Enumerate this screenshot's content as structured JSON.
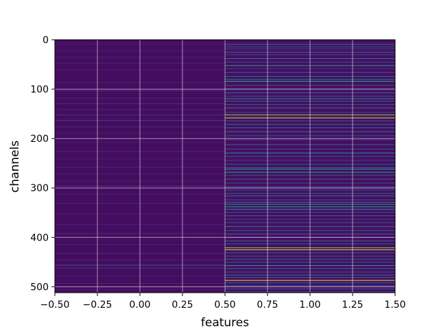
{
  "chart_data": {
    "type": "heatmap",
    "title": "",
    "xlabel": "features",
    "ylabel": "channels",
    "xlim": [
      -0.5,
      1.5
    ],
    "ylim": [
      512,
      0
    ],
    "y_inverted": true,
    "grid": true,
    "colormap": "viridis",
    "x_ticks": [
      -0.5,
      -0.25,
      0.0,
      0.25,
      0.5,
      0.75,
      1.0,
      1.25,
      1.5
    ],
    "x_tick_labels": [
      "−0.50",
      "−0.25",
      "0.00",
      "0.25",
      "0.50",
      "0.75",
      "1.00",
      "1.25",
      "1.50"
    ],
    "y_ticks": [
      0,
      100,
      200,
      300,
      400,
      500
    ],
    "y_tick_labels": [
      "0",
      "100",
      "200",
      "300",
      "400",
      "500"
    ],
    "columns": [
      {
        "feature": 0,
        "base_value": 0.04,
        "bright_rows": [
          {
            "channel": 8,
            "value": 0.1
          },
          {
            "channel": 22,
            "value": 0.12
          },
          {
            "channel": 35,
            "value": 0.12
          },
          {
            "channel": 47,
            "value": 0.14
          },
          {
            "channel": 61,
            "value": 0.1
          },
          {
            "channel": 86,
            "value": 0.12
          },
          {
            "channel": 103,
            "value": 0.16
          },
          {
            "channel": 118,
            "value": 0.14
          },
          {
            "channel": 129,
            "value": 0.16
          },
          {
            "channel": 141,
            "value": 0.12
          },
          {
            "channel": 152,
            "value": 0.18
          },
          {
            "channel": 163,
            "value": 0.26
          },
          {
            "channel": 176,
            "value": 0.14
          },
          {
            "channel": 189,
            "value": 0.12
          },
          {
            "channel": 207,
            "value": 0.1
          },
          {
            "channel": 226,
            "value": 0.14
          },
          {
            "channel": 241,
            "value": 0.12
          },
          {
            "channel": 258,
            "value": 0.14
          },
          {
            "channel": 271,
            "value": 0.1
          },
          {
            "channel": 286,
            "value": 0.12
          },
          {
            "channel": 296,
            "value": 0.22
          },
          {
            "channel": 312,
            "value": 0.12
          },
          {
            "channel": 331,
            "value": 0.14
          },
          {
            "channel": 352,
            "value": 0.1
          },
          {
            "channel": 374,
            "value": 0.12
          },
          {
            "channel": 392,
            "value": 0.14
          },
          {
            "channel": 414,
            "value": 0.12
          },
          {
            "channel": 432,
            "value": 0.14
          },
          {
            "channel": 445,
            "value": 0.12
          },
          {
            "channel": 456,
            "value": 0.3
          },
          {
            "channel": 462,
            "value": 0.2
          },
          {
            "channel": 478,
            "value": 0.12
          },
          {
            "channel": 493,
            "value": 0.14
          },
          {
            "channel": 505,
            "value": 0.12
          }
        ]
      },
      {
        "feature": 1,
        "base_value": 0.05,
        "bright_rows": [
          {
            "channel": 9,
            "value": 0.35
          },
          {
            "channel": 14,
            "value": 0.3
          },
          {
            "channel": 18,
            "value": 0.22
          },
          {
            "channel": 25,
            "value": 0.4
          },
          {
            "channel": 30,
            "value": 0.25
          },
          {
            "channel": 38,
            "value": 0.42
          },
          {
            "channel": 45,
            "value": 0.28
          },
          {
            "channel": 52,
            "value": 0.58
          },
          {
            "channel": 58,
            "value": 0.2
          },
          {
            "channel": 66,
            "value": 0.32
          },
          {
            "channel": 74,
            "value": 0.38
          },
          {
            "channel": 80,
            "value": 0.45
          },
          {
            "channel": 84,
            "value": 0.7
          },
          {
            "channel": 92,
            "value": 0.3
          },
          {
            "channel": 99,
            "value": 0.22
          },
          {
            "channel": 107,
            "value": 0.4
          },
          {
            "channel": 114,
            "value": 0.28
          },
          {
            "channel": 119,
            "value": 0.55
          },
          {
            "channel": 124,
            "value": 0.35
          },
          {
            "channel": 131,
            "value": 0.3
          },
          {
            "channel": 138,
            "value": 0.42
          },
          {
            "channel": 147,
            "value": 0.25
          },
          {
            "channel": 152,
            "value": 0.9
          },
          {
            "channel": 158,
            "value": 0.97
          },
          {
            "channel": 164,
            "value": 0.3
          },
          {
            "channel": 171,
            "value": 0.4
          },
          {
            "channel": 178,
            "value": 0.35
          },
          {
            "channel": 186,
            "value": 0.45
          },
          {
            "channel": 194,
            "value": 0.3
          },
          {
            "channel": 202,
            "value": 0.22
          },
          {
            "channel": 212,
            "value": 0.35
          },
          {
            "channel": 221,
            "value": 0.28
          },
          {
            "channel": 229,
            "value": 0.55
          },
          {
            "channel": 236,
            "value": 0.3
          },
          {
            "channel": 244,
            "value": 0.25
          },
          {
            "channel": 252,
            "value": 0.32
          },
          {
            "channel": 259,
            "value": 0.45
          },
          {
            "channel": 262,
            "value": 0.6
          },
          {
            "channel": 268,
            "value": 0.62
          },
          {
            "channel": 274,
            "value": 0.3
          },
          {
            "channel": 282,
            "value": 0.35
          },
          {
            "channel": 290,
            "value": 0.25
          },
          {
            "channel": 298,
            "value": 0.38
          },
          {
            "channel": 304,
            "value": 0.3
          },
          {
            "channel": 311,
            "value": 0.35
          },
          {
            "channel": 316,
            "value": 0.42
          },
          {
            "channel": 324,
            "value": 0.3
          },
          {
            "channel": 329,
            "value": 0.45
          },
          {
            "channel": 333,
            "value": 0.55
          },
          {
            "channel": 338,
            "value": 0.6
          },
          {
            "channel": 343,
            "value": 0.55
          },
          {
            "channel": 349,
            "value": 0.3
          },
          {
            "channel": 356,
            "value": 0.35
          },
          {
            "channel": 363,
            "value": 0.25
          },
          {
            "channel": 370,
            "value": 0.32
          },
          {
            "channel": 378,
            "value": 0.45
          },
          {
            "channel": 386,
            "value": 0.3
          },
          {
            "channel": 393,
            "value": 0.38
          },
          {
            "channel": 400,
            "value": 0.25
          },
          {
            "channel": 407,
            "value": 0.35
          },
          {
            "channel": 413,
            "value": 0.3
          },
          {
            "channel": 421,
            "value": 0.9
          },
          {
            "channel": 425,
            "value": 0.95
          },
          {
            "channel": 431,
            "value": 0.35
          },
          {
            "channel": 438,
            "value": 0.3
          },
          {
            "channel": 444,
            "value": 0.4
          },
          {
            "channel": 450,
            "value": 0.3
          },
          {
            "channel": 457,
            "value": 0.62
          },
          {
            "channel": 463,
            "value": 0.35
          },
          {
            "channel": 470,
            "value": 0.3
          },
          {
            "channel": 476,
            "value": 0.38
          },
          {
            "channel": 481,
            "value": 0.45
          },
          {
            "channel": 487,
            "value": 0.97
          },
          {
            "channel": 492,
            "value": 0.35
          },
          {
            "channel": 498,
            "value": 0.4
          },
          {
            "channel": 504,
            "value": 0.3
          },
          {
            "channel": 510,
            "value": 0.25
          }
        ]
      }
    ]
  }
}
